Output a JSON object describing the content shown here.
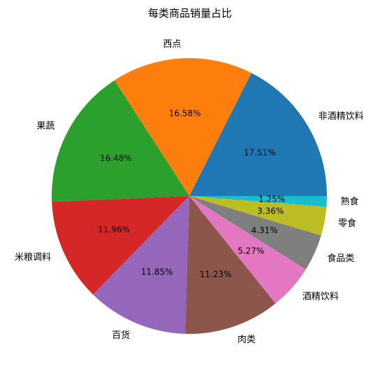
{
  "chart_data": {
    "type": "pie",
    "title": "每类商品销量占比",
    "categories": [
      "非酒精饮料",
      "西点",
      "果蔬",
      "米粮调料",
      "百货",
      "肉类",
      "酒精饮料",
      "食品类",
      "零食",
      "熟食"
    ],
    "values": [
      17.51,
      16.58,
      16.48,
      11.96,
      11.85,
      11.23,
      5.27,
      4.31,
      3.36,
      1.25
    ],
    "value_labels": [
      "17.51%",
      "16.58%",
      "16.48%",
      "11.96%",
      "11.85%",
      "11.23%",
      "5.27%",
      "4.31%",
      "3.36%",
      "1.25%"
    ],
    "colors": [
      "#1f77b4",
      "#ff7f0e",
      "#2ca02c",
      "#d62728",
      "#9467bd",
      "#8c564b",
      "#e377c2",
      "#7f7f7f",
      "#bcbd22",
      "#17becf"
    ],
    "start_angle_deg": 0,
    "direction": "counterclockwise",
    "legend": "none"
  }
}
